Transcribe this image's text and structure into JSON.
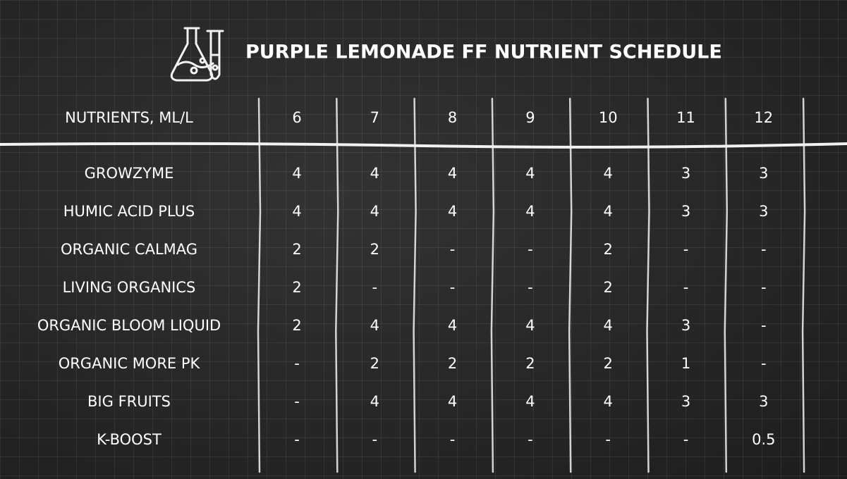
{
  "header": {
    "title": "PURPLE LEMONADE FF NUTRIENT SCHEDULE"
  },
  "table": {
    "columns": [
      "NUTRIENTS, ML/L",
      "6",
      "7",
      "8",
      "9",
      "10",
      "11",
      "12"
    ],
    "rows": [
      [
        "GROWZYME",
        "4",
        "4",
        "4",
        "4",
        "4",
        "3",
        "3"
      ],
      [
        "HUMIC ACID PLUS",
        "4",
        "4",
        "4",
        "4",
        "4",
        "3",
        "3"
      ],
      [
        "ORGANIC CALMAG",
        "2",
        "2",
        "-",
        "-",
        "2",
        "-",
        "-"
      ],
      [
        "LIVING ORGANICS",
        "2",
        "-",
        "-",
        "-",
        "2",
        "-",
        "-"
      ],
      [
        "ORGANIC BLOOM LIQUID",
        "2",
        "4",
        "4",
        "4",
        "4",
        "3",
        "-"
      ],
      [
        "ORGANIC MORE PK",
        "-",
        "2",
        "2",
        "2",
        "2",
        "1",
        "-"
      ],
      [
        "BIG FRUITS",
        "-",
        "4",
        "4",
        "4",
        "4",
        "3",
        "3"
      ],
      [
        "K-BOOST",
        "-",
        "-",
        "-",
        "-",
        "-",
        "-",
        "0.5"
      ]
    ]
  }
}
